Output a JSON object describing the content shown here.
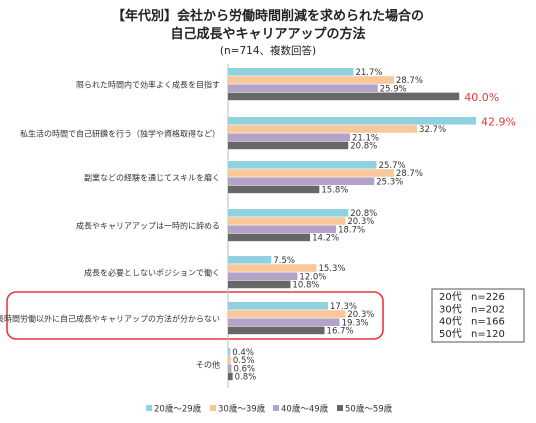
{
  "chart_data": {
    "type": "bar",
    "orientation": "horizontal",
    "title": "【年代別】会社から労働時間削減を求められた場合の",
    "title_line2": "自己成長やキャリアアップの方法",
    "subtitle": "(n=714、複数回答)",
    "xlim": [
      0,
      45
    ],
    "grid": false,
    "categories": [
      "限られた時間内で効率よく成長を目指す",
      "私生活の時間で自己研鑽を行う（独学や資格取得など）",
      "副業などの経験を通じてスキルを磨く",
      "成長やキャリアアップは一時的に諦める",
      "成長を必要としないポジションで働く",
      "長時間労働以外に自己成長やキャリアップの方法が分からない",
      "その他"
    ],
    "series": [
      {
        "name": "20歳～29歳",
        "color": "#8fd1df",
        "values": [
          21.7,
          42.9,
          25.7,
          20.8,
          7.5,
          17.3,
          0.4
        ],
        "labels": [
          "21.7%",
          "42.9%",
          "25.7%",
          "20.8%",
          "7.5%",
          "17.3%",
          "0.4%"
        ]
      },
      {
        "name": "30歳～39歳",
        "color": "#f8c89a",
        "values": [
          28.7,
          32.7,
          28.7,
          20.3,
          15.3,
          20.3,
          0.5
        ],
        "labels": [
          "28.7%",
          "32.7%",
          "28.7%",
          "20.3%",
          "15.3%",
          "20.3%",
          "0.5%"
        ]
      },
      {
        "name": "40歳～49歳",
        "color": "#b4a3c8",
        "values": [
          25.9,
          21.1,
          25.3,
          18.7,
          12.0,
          19.3,
          0.6
        ],
        "labels": [
          "25.9%",
          "21.1%",
          "25.3%",
          "18.7%",
          "12.0%",
          "19.3%",
          "0.6%"
        ]
      },
      {
        "name": "50歳～59歳",
        "color": "#676767",
        "values": [
          40.0,
          20.8,
          15.8,
          14.2,
          10.8,
          16.7,
          0.8
        ],
        "labels": [
          "40.0%",
          "20.8%",
          "15.8%",
          "14.2%",
          "10.8%",
          "16.7%",
          "0.8%"
        ]
      }
    ],
    "highlighted_values": [
      {
        "category_index": 0,
        "series_index": 3,
        "color": "#e8383d"
      },
      {
        "category_index": 1,
        "series_index": 0,
        "color": "#e8383d"
      }
    ],
    "highlighted_category_index": 5,
    "highlight_box_color": "#e8383d",
    "sample_sizes": [
      {
        "label": "20代",
        "n": "n=226"
      },
      {
        "label": "30代",
        "n": "n=202"
      },
      {
        "label": "40代",
        "n": "n=166"
      },
      {
        "label": "50代",
        "n": "n=120"
      }
    ],
    "legend_position": "bottom"
  }
}
